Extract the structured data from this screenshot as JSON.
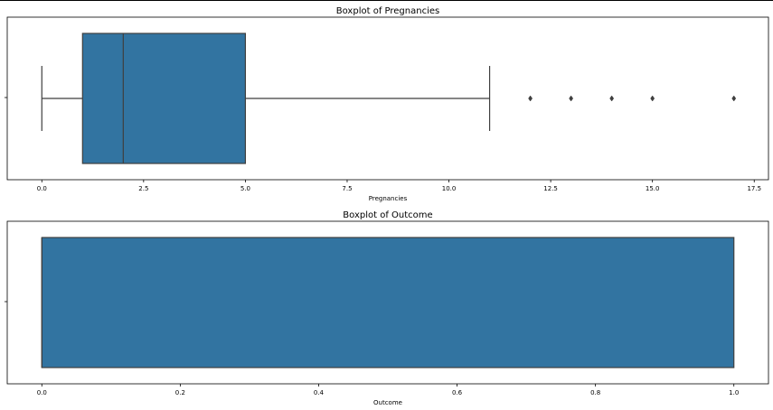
{
  "chart_data": [
    {
      "type": "boxplot",
      "title": "Boxplot of Pregnancies",
      "xlabel": "Pregnancies",
      "ylabel": "",
      "xlim": [
        -0.85,
        17.85
      ],
      "ticks": [
        0.0,
        2.5,
        5.0,
        7.5,
        10.0,
        12.5,
        15.0,
        17.5
      ],
      "tick_labels": [
        "0.0",
        "2.5",
        "5.0",
        "7.5",
        "10.0",
        "12.5",
        "15.0",
        "17.5"
      ],
      "box": {
        "whisker_low": 0,
        "q1": 1,
        "median": 2,
        "q3": 5,
        "whisker_high": 11
      },
      "outliers": [
        12,
        13,
        14,
        15,
        17
      ],
      "box_color": "#3274a1",
      "grid": false
    },
    {
      "type": "boxplot",
      "title": "Boxplot of Outcome",
      "xlabel": "Outcome",
      "ylabel": "",
      "xlim": [
        -0.05,
        1.05
      ],
      "ticks": [
        0.0,
        0.2,
        0.4,
        0.6,
        0.8,
        1.0
      ],
      "tick_labels": [
        "0.0",
        "0.2",
        "0.4",
        "0.6",
        "0.8",
        "1.0"
      ],
      "box": {
        "whisker_low": 0,
        "q1": 0,
        "median": 0,
        "q3": 1,
        "whisker_high": 1
      },
      "outliers": [],
      "box_color": "#3274a1",
      "grid": false
    }
  ]
}
